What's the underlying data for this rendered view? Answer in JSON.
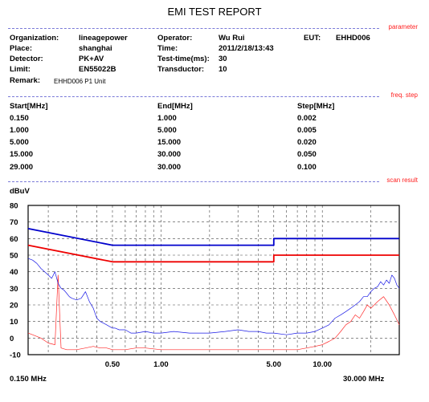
{
  "report": {
    "title": "EMI TEST REPORT"
  },
  "section_tags": {
    "parameter": "parameter",
    "freq_step": "freq. step",
    "scan_result": "scan result"
  },
  "parameters": {
    "organization_label": "Organization:",
    "organization": "lineagepower",
    "place_label": "Place:",
    "place": "shanghai",
    "detector_label": "Detector:",
    "detector": "PK+AV",
    "limit_label": "Limit:",
    "limit": "EN55022B",
    "remark_label": "Remark:",
    "remark": "EHHD006 P1 Unit",
    "operator_label": "Operator:",
    "operator": "Wu Rui",
    "time_label": "Time:",
    "time": "2011/2/18/13:43",
    "testtime_label": "Test-time(ms):",
    "testtime": "30",
    "transductor_label": "Transductor:",
    "transductor": "10",
    "eut_label": "EUT:",
    "eut": "EHHD006"
  },
  "freq_table": {
    "headers": [
      "Start[MHz]",
      "End[MHz]",
      "Step[MHz]"
    ],
    "rows": [
      [
        "0.150",
        "1.000",
        "0.002"
      ],
      [
        "1.000",
        "5.000",
        "0.005"
      ],
      [
        "5.000",
        "15.000",
        "0.020"
      ],
      [
        "15.000",
        "30.000",
        "0.050"
      ],
      [
        "29.000",
        "30.000",
        "0.100"
      ]
    ]
  },
  "chart_data": {
    "type": "line",
    "ylabel": "dBuV",
    "xscale": "log",
    "xlim": [
      0.15,
      30
    ],
    "ylim": [
      -10,
      80
    ],
    "grid": true,
    "yticks": [
      80,
      70,
      60,
      50,
      40,
      30,
      20,
      10,
      0,
      -10
    ],
    "xtick_labels": [
      {
        "x": 0.5,
        "label": "0.50"
      },
      {
        "x": 1,
        "label": "1.00"
      },
      {
        "x": 5,
        "label": "5.00"
      },
      {
        "x": 10,
        "label": "10.00"
      }
    ],
    "x_start_label": "0.150 MHz",
    "x_end_label": "30.000 MHz",
    "colors": {
      "qp_limit": "#0000cc",
      "av_limit": "#ee0000",
      "pk_trace": "#1a1ae6",
      "av_trace": "#ff2a2a",
      "grid": "#444444"
    },
    "series": [
      {
        "key": "qp_limit",
        "x": [
          0.15,
          0.5,
          5,
          5,
          30
        ],
        "y": [
          66,
          56,
          56,
          60,
          60
        ]
      },
      {
        "key": "av_limit",
        "x": [
          0.15,
          0.5,
          5,
          5,
          30
        ],
        "y": [
          56,
          46,
          46,
          50,
          50
        ]
      },
      {
        "key": "pk_trace",
        "x": [
          0.15,
          0.16,
          0.17,
          0.18,
          0.19,
          0.2,
          0.21,
          0.22,
          0.23,
          0.24,
          0.25,
          0.26,
          0.27,
          0.28,
          0.3,
          0.32,
          0.34,
          0.36,
          0.38,
          0.4,
          0.42,
          0.44,
          0.46,
          0.48,
          0.5,
          0.52,
          0.55,
          0.6,
          0.65,
          0.7,
          0.8,
          0.9,
          1.0,
          1.2,
          1.5,
          2.0,
          2.5,
          3.0,
          3.5,
          4.0,
          4.5,
          5.0,
          6.0,
          7.0,
          8.0,
          9.0,
          10,
          11,
          12,
          13,
          14,
          15,
          16,
          17,
          18,
          19,
          20,
          21,
          22,
          23,
          24,
          25,
          26,
          27,
          28,
          29,
          30
        ],
        "y": [
          48,
          47,
          45,
          42,
          40,
          38,
          36,
          40,
          33,
          30,
          29,
          27,
          25,
          24,
          23,
          24,
          28,
          22,
          18,
          12,
          10,
          9,
          8,
          7,
          6,
          6,
          5,
          5,
          3,
          3,
          4,
          3,
          3,
          4,
          3,
          3,
          4,
          5,
          4,
          4,
          3,
          3,
          2,
          3,
          3,
          4,
          6,
          8,
          12,
          14,
          16,
          18,
          20,
          22,
          25,
          25,
          28,
          30,
          31,
          34,
          32,
          35,
          33,
          38,
          36,
          32,
          30
        ]
      },
      {
        "key": "av_trace",
        "x": [
          0.15,
          0.16,
          0.18,
          0.2,
          0.22,
          0.23,
          0.24,
          0.26,
          0.3,
          0.34,
          0.38,
          0.42,
          0.46,
          0.5,
          0.55,
          0.6,
          0.7,
          0.8,
          1.0,
          1.5,
          2.0,
          3.0,
          4.0,
          5.0,
          6.0,
          7.0,
          8.0,
          9.0,
          10,
          11,
          12,
          13,
          14,
          15,
          16,
          17,
          18,
          19,
          20,
          22,
          24,
          26,
          28,
          30
        ],
        "y": [
          3,
          2,
          0,
          -3,
          -4,
          38,
          -6,
          -7,
          -7,
          -6,
          -5,
          -6,
          -6,
          -7,
          -7,
          -7,
          -6,
          -6,
          -7,
          -7,
          -7,
          -7,
          -7,
          -7,
          -7,
          -7,
          -6,
          -5,
          -4,
          -2,
          0,
          4,
          8,
          10,
          14,
          12,
          16,
          20,
          18,
          22,
          25,
          20,
          14,
          8
        ]
      }
    ]
  }
}
